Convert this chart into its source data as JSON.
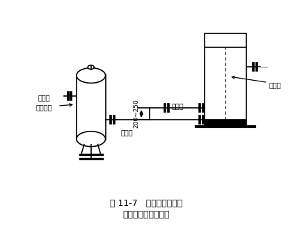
{
  "title_line1": "图 11-7   洗涤式油分离器",
  "title_line2": "与冷凝器的安装高度",
  "label_separator": "洗涤式\n油分离器",
  "label_inlet": "进液口",
  "label_outlet": "出液口",
  "label_condenser": "冷凝器",
  "label_height": "200~250",
  "bg_color": "#ffffff",
  "line_color": "#000000",
  "fig_width": 4.35,
  "fig_height": 3.32,
  "dpi": 100
}
